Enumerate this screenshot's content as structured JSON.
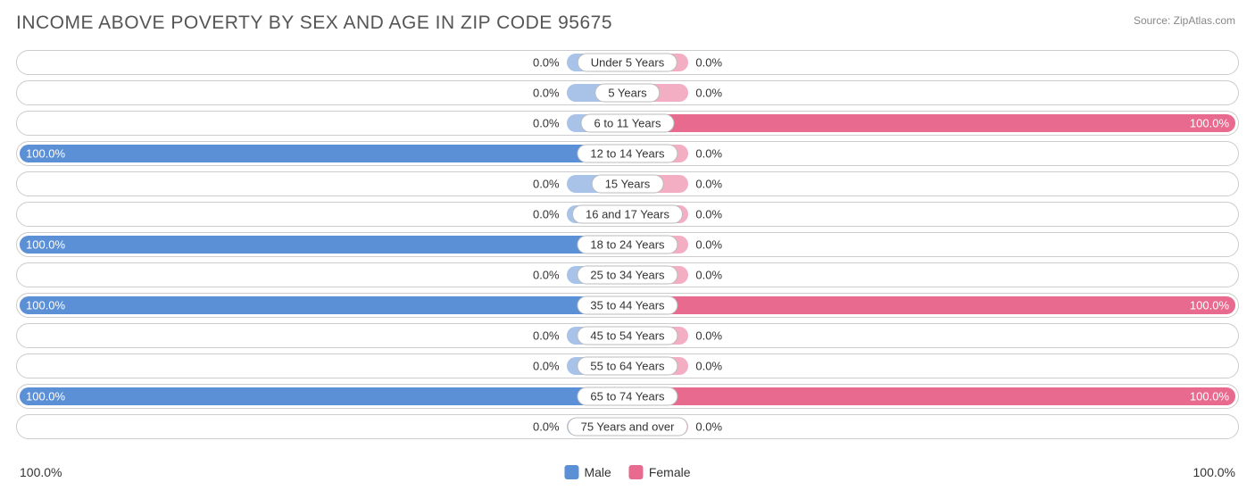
{
  "title": "INCOME ABOVE POVERTY BY SEX AND AGE IN ZIP CODE 95675",
  "source": "Source: ZipAtlas.com",
  "colors": {
    "male_full": "#5b8fd6",
    "male_light": "#a9c3e8",
    "female_full": "#e86a8f",
    "female_light": "#f3aec3",
    "row_border": "#cccccc",
    "text": "#333333",
    "insideText": "#ffffff"
  },
  "min_bar_pct": 10,
  "rows": [
    {
      "age": "Under 5 Years",
      "male": 0,
      "female": 0
    },
    {
      "age": "5 Years",
      "male": 0,
      "female": 0
    },
    {
      "age": "6 to 11 Years",
      "male": 0,
      "female": 100
    },
    {
      "age": "12 to 14 Years",
      "male": 100,
      "female": 0
    },
    {
      "age": "15 Years",
      "male": 0,
      "female": 0
    },
    {
      "age": "16 and 17 Years",
      "male": 0,
      "female": 0
    },
    {
      "age": "18 to 24 Years",
      "male": 100,
      "female": 0
    },
    {
      "age": "25 to 34 Years",
      "male": 0,
      "female": 0
    },
    {
      "age": "35 to 44 Years",
      "male": 100,
      "female": 100
    },
    {
      "age": "45 to 54 Years",
      "male": 0,
      "female": 0
    },
    {
      "age": "55 to 64 Years",
      "male": 0,
      "female": 0
    },
    {
      "age": "65 to 74 Years",
      "male": 100,
      "female": 100
    },
    {
      "age": "75 Years and over",
      "male": 0,
      "female": 0
    }
  ],
  "axis": {
    "left": "100.0%",
    "right": "100.0%"
  },
  "legend": {
    "male": "Male",
    "female": "Female"
  }
}
